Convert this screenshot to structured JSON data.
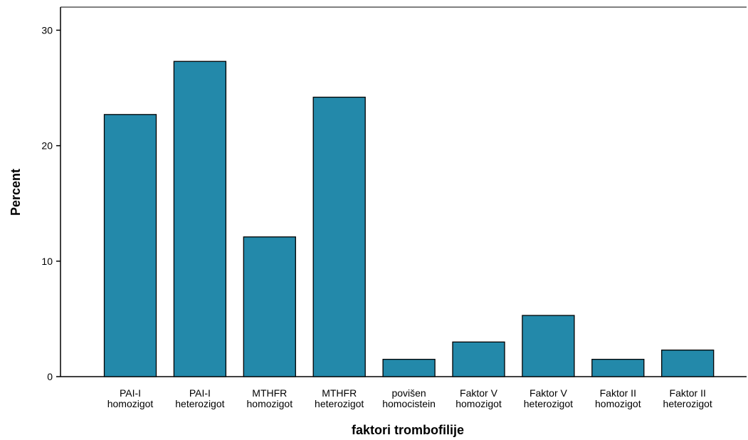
{
  "chart_data": {
    "type": "bar",
    "title": "",
    "xlabel": "faktori trombofilije",
    "ylabel": "Percent",
    "ylim": [
      0,
      32
    ],
    "yticks": [
      0,
      10,
      20,
      30
    ],
    "grid": false,
    "bar_color": "#2389aa",
    "bar_edge_color": "#000000",
    "categories": [
      [
        "PAI-I",
        "homozigot"
      ],
      [
        "PAI-I",
        "heterozigot"
      ],
      [
        "MTHFR",
        "homozigot"
      ],
      [
        "MTHFR",
        "heterozigot"
      ],
      [
        "povišen",
        "homocistein"
      ],
      [
        "Faktor V",
        "homozigot"
      ],
      [
        "Faktor V",
        "heterozigot"
      ],
      [
        "Faktor II",
        "homozigot"
      ],
      [
        "Faktor II",
        "heterozigot"
      ]
    ],
    "values": [
      22.7,
      27.3,
      12.1,
      24.2,
      1.5,
      3.0,
      5.3,
      1.5,
      2.3
    ]
  }
}
